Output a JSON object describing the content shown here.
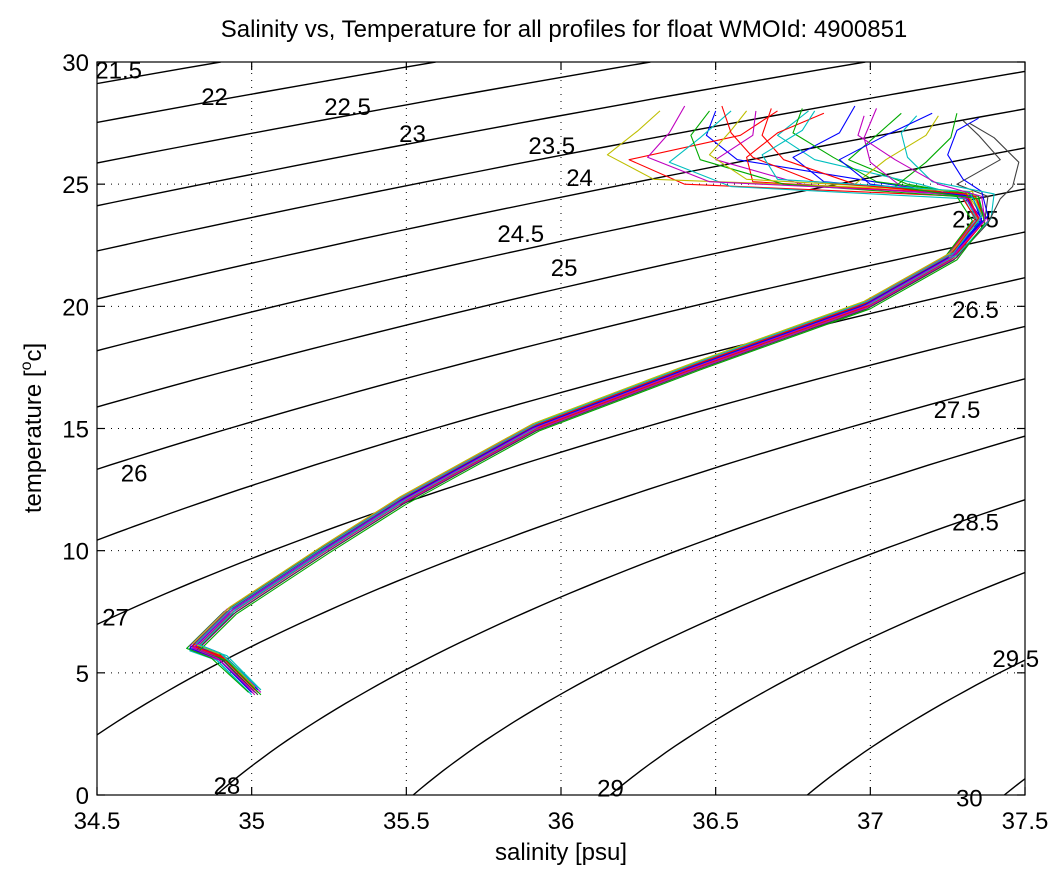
{
  "chart_data": {
    "type": "line",
    "title": "Salinity vs, Temperature for all profiles for float WMOId: 4900851",
    "xlabel": "salinity [psu]",
    "ylabel": "temperature [",
    "ylabel_sup": "o",
    "ylabel_suffix": "c]",
    "xlim": [
      34.5,
      37.5
    ],
    "ylim": [
      0,
      30
    ],
    "x_ticks": [
      34.5,
      35,
      35.5,
      36,
      36.5,
      37,
      37.5
    ],
    "x_tick_labels": [
      "34.5",
      "35",
      "35.5",
      "36",
      "36.5",
      "37",
      "37.5"
    ],
    "y_ticks": [
      0,
      5,
      10,
      15,
      20,
      25,
      30
    ],
    "y_tick_labels": [
      "0",
      "5",
      "10",
      "15",
      "20",
      "25",
      "30"
    ],
    "grid": true,
    "legend": "none",
    "density_contours": {
      "levels": [
        21.5,
        22,
        22.5,
        23,
        23.5,
        24,
        24.5,
        25,
        25.5,
        26,
        26.5,
        27,
        27.5,
        28,
        28.5,
        29,
        29.5,
        30
      ],
      "labels": [
        {
          "text": "21.5",
          "s": 34.57,
          "t": 29.7
        },
        {
          "text": "22",
          "s": 34.88,
          "t": 28.6
        },
        {
          "text": "22.5",
          "s": 35.31,
          "t": 28.2
        },
        {
          "text": "23",
          "s": 35.52,
          "t": 27.1
        },
        {
          "text": "23.5",
          "s": 35.97,
          "t": 26.6
        },
        {
          "text": "24",
          "s": 36.06,
          "t": 25.3
        },
        {
          "text": "24.5",
          "s": 35.87,
          "t": 23.0
        },
        {
          "text": "25",
          "s": 36.01,
          "t": 21.6
        },
        {
          "text": "25.5",
          "s": 37.34,
          "t": 23.6
        },
        {
          "text": "26",
          "s": 34.62,
          "t": 13.2
        },
        {
          "text": "26.5",
          "s": 37.34,
          "t": 19.9
        },
        {
          "text": "27",
          "s": 34.56,
          "t": 7.3
        },
        {
          "text": "27.5",
          "s": 37.28,
          "t": 15.8
        },
        {
          "text": "28",
          "s": 34.92,
          "t": 0.4
        },
        {
          "text": "28.5",
          "s": 37.34,
          "t": 11.2
        },
        {
          "text": "29",
          "s": 36.16,
          "t": 0.3
        },
        {
          "text": "29.5",
          "s": 37.47,
          "t": 5.6
        },
        {
          "text": "30",
          "s": 37.32,
          "t": -0.1
        }
      ]
    },
    "series": [
      {
        "color": "#0000ff",
        "t": [
          4.2,
          5.6,
          6.0,
          7.5,
          10.0,
          12.0,
          15.0,
          17.5,
          20.0,
          22.0,
          23.5,
          24.5,
          25.0,
          26.0,
          27.0,
          28.0
        ],
        "s": [
          35.01,
          34.9,
          34.81,
          34.93,
          35.23,
          35.48,
          35.91,
          36.43,
          36.98,
          37.26,
          37.36,
          37.33,
          37.06,
          36.57,
          36.47,
          36.5
        ]
      },
      {
        "color": "#ff0000",
        "t": [
          4.2,
          5.6,
          6.0,
          7.5,
          10.0,
          12.0,
          15.0,
          17.5,
          20.0,
          22.0,
          23.5,
          24.5,
          25.0,
          26.0,
          27.0,
          28.0
        ],
        "s": [
          35.0,
          34.89,
          34.8,
          34.92,
          35.22,
          35.47,
          35.9,
          36.42,
          36.97,
          37.25,
          37.35,
          37.31,
          36.4,
          36.22,
          36.58,
          36.7
        ]
      },
      {
        "color": "#00aa00",
        "t": [
          4.2,
          5.6,
          6.0,
          7.5,
          10.0,
          12.0,
          15.0,
          17.5,
          20.0,
          22.0,
          23.5,
          24.5,
          25.0,
          26.0,
          27.0,
          27.9
        ],
        "s": [
          35.02,
          34.91,
          34.82,
          34.94,
          35.24,
          35.49,
          35.92,
          36.44,
          36.99,
          37.27,
          37.37,
          37.35,
          37.12,
          36.93,
          37.02,
          37.1
        ]
      },
      {
        "color": "#00bfbf",
        "t": [
          4.2,
          5.6,
          6.0,
          7.5,
          10.0,
          12.0,
          15.0,
          17.5,
          20.0,
          22.0,
          23.5,
          24.5,
          25.0,
          26.0,
          27.0,
          28.0
        ],
        "s": [
          34.99,
          34.88,
          34.79,
          34.91,
          35.21,
          35.46,
          35.89,
          36.41,
          36.96,
          37.24,
          37.34,
          37.3,
          37.16,
          36.82,
          36.7,
          36.8
        ]
      },
      {
        "color": "#bf00bf",
        "t": [
          4.2,
          5.6,
          6.0,
          7.5,
          10.0,
          12.0,
          15.0,
          17.5,
          20.0,
          22.0,
          23.5,
          24.5,
          25.0,
          26.0,
          27.0,
          28.0
        ],
        "s": [
          35.03,
          34.92,
          34.83,
          34.95,
          35.25,
          35.5,
          35.93,
          36.45,
          37.0,
          37.28,
          37.38,
          37.34,
          36.78,
          36.5,
          36.62,
          36.63
        ]
      },
      {
        "color": "#bfbf00",
        "t": [
          4.2,
          5.6,
          6.0,
          7.5,
          10.0,
          12.0,
          15.0,
          17.5,
          20.0,
          22.0,
          23.5,
          24.5,
          25.0,
          26.0,
          27.0,
          27.8
        ],
        "s": [
          35.0,
          34.89,
          34.8,
          34.92,
          35.22,
          35.47,
          35.9,
          36.42,
          36.97,
          37.25,
          37.35,
          37.32,
          36.95,
          37.05,
          37.18,
          37.22
        ]
      },
      {
        "color": "#404040",
        "t": [
          4.2,
          5.6,
          6.0,
          7.5,
          10.0,
          12.0,
          15.0,
          17.5,
          20.0,
          22.0,
          23.5,
          24.5,
          25.0,
          26.0,
          27.0,
          27.6
        ],
        "s": [
          35.01,
          34.9,
          34.81,
          34.93,
          35.23,
          35.48,
          35.91,
          36.43,
          36.98,
          37.26,
          37.37,
          37.38,
          37.28,
          37.42,
          37.35,
          37.3
        ]
      },
      {
        "color": "#0000ff",
        "t": [
          4.3,
          5.7,
          6.1,
          7.6,
          10.1,
          12.1,
          15.1,
          17.6,
          20.1,
          22.1,
          23.6,
          24.6,
          25.1,
          26.1,
          27.1,
          28.2
        ],
        "s": [
          35.02,
          34.9,
          34.82,
          34.94,
          35.24,
          35.49,
          35.92,
          36.44,
          36.99,
          37.27,
          37.36,
          37.3,
          36.85,
          36.75,
          36.9,
          36.95
        ]
      },
      {
        "color": "#ff0000",
        "t": [
          4.3,
          5.7,
          6.1,
          7.6,
          10.1,
          12.1,
          15.1,
          17.6,
          20.1,
          22.1,
          23.6,
          24.6,
          25.1,
          26.1,
          27.1,
          27.9
        ],
        "s": [
          35.0,
          34.88,
          34.8,
          34.92,
          35.22,
          35.47,
          35.9,
          36.42,
          36.97,
          37.25,
          37.34,
          37.29,
          36.62,
          36.6,
          36.7,
          36.85
        ]
      },
      {
        "color": "#00aa00",
        "t": [
          4.3,
          5.7,
          6.1,
          7.6,
          10.1,
          12.1,
          15.1,
          17.6,
          20.1,
          22.1,
          23.6,
          24.6,
          25.1,
          26.1,
          27.1,
          28.1
        ],
        "s": [
          35.03,
          34.91,
          34.83,
          34.95,
          35.25,
          35.5,
          35.93,
          36.45,
          37.0,
          37.28,
          37.37,
          37.33,
          37.02,
          36.88,
          36.75,
          36.78
        ]
      },
      {
        "color": "#00bfbf",
        "t": [
          4.1,
          5.5,
          5.9,
          7.4,
          9.9,
          11.9,
          14.9,
          17.4,
          19.9,
          21.9,
          23.4,
          24.4,
          24.9,
          25.9,
          26.9,
          28.0
        ],
        "s": [
          35.0,
          34.89,
          34.8,
          34.92,
          35.22,
          35.47,
          35.9,
          36.42,
          36.97,
          37.25,
          37.35,
          37.31,
          36.55,
          36.35,
          36.45,
          36.55
        ]
      },
      {
        "color": "#bf00bf",
        "t": [
          4.1,
          5.5,
          5.9,
          7.4,
          9.9,
          11.9,
          14.9,
          17.4,
          19.9,
          21.9,
          23.4,
          24.4,
          24.9,
          25.9,
          26.9,
          28.1
        ],
        "s": [
          35.01,
          34.9,
          34.81,
          34.93,
          35.23,
          35.48,
          35.91,
          36.43,
          36.98,
          37.26,
          37.36,
          37.32,
          37.1,
          37.0,
          36.98,
          37.02
        ]
      },
      {
        "color": "#bfbf00",
        "t": [
          4.4,
          5.8,
          6.2,
          7.7,
          10.2,
          12.2,
          15.2,
          17.7,
          20.2,
          22.2,
          23.7,
          24.7,
          25.2,
          26.2,
          27.2,
          28.0
        ],
        "s": [
          35.01,
          34.89,
          34.81,
          34.93,
          35.23,
          35.48,
          35.91,
          36.43,
          36.98,
          37.26,
          37.36,
          37.33,
          36.3,
          36.15,
          36.25,
          36.32
        ]
      },
      {
        "color": "#0000ff",
        "t": [
          4.4,
          5.8,
          6.2,
          7.7,
          10.2,
          12.2,
          15.2,
          17.7,
          20.2,
          22.2,
          23.7,
          24.7,
          25.2,
          26.2,
          27.2,
          27.7
        ],
        "s": [
          35.02,
          34.9,
          34.82,
          34.94,
          35.24,
          35.49,
          35.92,
          36.44,
          36.99,
          37.27,
          37.38,
          37.36,
          37.3,
          37.25,
          37.28,
          37.35
        ]
      },
      {
        "color": "#ff0000",
        "t": [
          4.2,
          5.6,
          6.0,
          7.5,
          10.0,
          12.0,
          15.0,
          17.5,
          20.0,
          22.0,
          23.5,
          24.5,
          25.0,
          26.0,
          27.0,
          28.1
        ],
        "s": [
          35.02,
          34.91,
          34.82,
          34.94,
          35.24,
          35.49,
          35.92,
          36.44,
          36.99,
          37.27,
          37.37,
          37.34,
          36.95,
          36.72,
          36.65,
          36.68
        ]
      },
      {
        "color": "#00aa00",
        "t": [
          4.2,
          5.6,
          6.0,
          7.5,
          10.0,
          12.0,
          15.0,
          17.5,
          20.0,
          22.0,
          23.5,
          24.5,
          25.0,
          26.0,
          27.0,
          28.0
        ],
        "s": [
          34.99,
          34.87,
          34.79,
          34.91,
          35.21,
          35.46,
          35.89,
          36.41,
          36.96,
          37.24,
          37.33,
          37.28,
          36.72,
          36.45,
          36.42,
          36.48
        ]
      },
      {
        "color": "#00bfbf",
        "t": [
          4.3,
          5.7,
          6.1,
          7.6,
          10.1,
          12.1,
          15.1,
          17.6,
          20.1,
          22.1,
          23.6,
          24.6,
          25.1,
          26.1,
          27.1,
          27.8
        ],
        "s": [
          35.03,
          34.92,
          34.83,
          34.95,
          35.25,
          35.5,
          35.93,
          36.45,
          37.0,
          37.28,
          37.39,
          37.4,
          37.2,
          37.12,
          37.1,
          37.15
        ]
      },
      {
        "color": "#bf00bf",
        "t": [
          4.3,
          5.7,
          6.1,
          7.6,
          10.1,
          12.1,
          15.1,
          17.6,
          20.1,
          22.1,
          23.6,
          24.6,
          25.1,
          26.1,
          27.1,
          28.2
        ],
        "s": [
          35.0,
          34.88,
          34.8,
          34.92,
          35.22,
          35.47,
          35.9,
          36.42,
          36.97,
          37.25,
          37.35,
          37.3,
          36.48,
          36.28,
          36.35,
          36.4
        ]
      },
      {
        "color": "#404040",
        "t": [
          4.1,
          5.5,
          5.9,
          7.4,
          9.9,
          11.9,
          14.9,
          17.4,
          19.9,
          21.9,
          23.4,
          24.4,
          24.9,
          25.9,
          26.9,
          27.5
        ],
        "s": [
          35.02,
          34.91,
          34.82,
          34.94,
          35.24,
          35.49,
          35.92,
          36.44,
          36.99,
          37.27,
          37.38,
          37.42,
          37.46,
          37.48,
          37.4,
          37.32
        ]
      },
      {
        "color": "#bfbf00",
        "t": [
          4.4,
          5.8,
          6.2,
          7.7,
          10.2,
          12.2,
          15.2,
          17.7,
          20.2,
          22.2,
          23.7,
          24.7,
          25.2,
          26.2,
          27.2,
          28.0
        ],
        "s": [
          35.01,
          34.9,
          34.81,
          34.93,
          35.23,
          35.48,
          35.91,
          36.43,
          36.98,
          37.26,
          37.36,
          37.31,
          36.6,
          36.48,
          36.55,
          36.6
        ]
      },
      {
        "color": "#0000ff",
        "t": [
          4.2,
          5.6,
          6.0,
          7.5,
          10.0,
          12.0,
          15.0,
          17.5,
          20.0,
          22.0,
          23.5,
          24.5,
          25.0,
          26.0,
          27.0,
          27.9
        ],
        "s": [
          35.0,
          34.89,
          34.8,
          34.92,
          35.22,
          35.47,
          35.9,
          36.42,
          36.97,
          37.25,
          37.36,
          37.33,
          37.0,
          36.9,
          37.05,
          37.2
        ]
      },
      {
        "color": "#ff0000",
        "t": [
          4.3,
          5.7,
          6.1,
          7.6,
          10.1,
          12.1,
          15.1,
          17.6,
          20.1,
          22.1,
          23.6,
          24.6,
          25.1,
          26.1,
          27.1,
          28.2
        ],
        "s": [
          35.01,
          34.9,
          34.81,
          34.93,
          35.23,
          35.48,
          35.91,
          36.43,
          36.98,
          37.26,
          37.35,
          37.31,
          36.82,
          36.62,
          36.55,
          36.52
        ]
      },
      {
        "color": "#00aa00",
        "t": [
          4.1,
          5.5,
          5.9,
          7.4,
          9.9,
          11.9,
          14.9,
          17.4,
          19.9,
          21.9,
          23.4,
          24.4,
          24.9,
          25.9,
          26.9,
          27.9
        ],
        "s": [
          35.03,
          34.92,
          34.83,
          34.95,
          35.25,
          35.5,
          35.93,
          36.45,
          37.0,
          37.28,
          37.37,
          37.35,
          37.08,
          37.18,
          37.26,
          37.28
        ]
      },
      {
        "color": "#00bfbf",
        "t": [
          4.4,
          5.8,
          6.2,
          7.7,
          10.2,
          12.2,
          15.2,
          17.7,
          20.2,
          22.2,
          23.7,
          24.7,
          25.2,
          26.2,
          27.2,
          28.0
        ],
        "s": [
          35.02,
          34.9,
          34.82,
          34.94,
          35.24,
          35.49,
          35.92,
          36.44,
          36.99,
          37.27,
          37.36,
          37.32,
          36.7,
          36.65,
          36.78,
          36.82
        ]
      },
      {
        "color": "#bf00bf",
        "t": [
          4.2,
          5.6,
          6.0,
          7.5,
          10.0,
          12.0,
          15.0,
          17.5,
          20.0,
          22.0,
          23.5,
          24.5,
          25.0,
          26.0,
          27.0,
          27.8
        ],
        "s": [
          35.01,
          34.89,
          34.81,
          34.93,
          35.23,
          35.48,
          35.91,
          36.43,
          36.98,
          37.26,
          37.37,
          37.36,
          37.22,
          37.08,
          36.96,
          36.98
        ]
      }
    ]
  }
}
